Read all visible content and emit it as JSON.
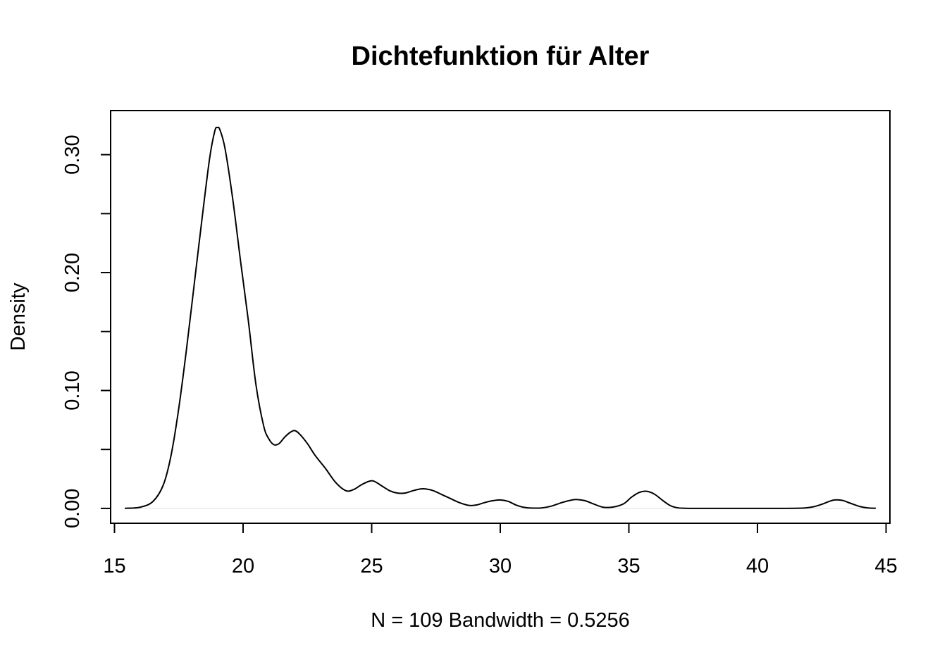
{
  "chart_data": {
    "type": "line",
    "title": "Dichtefunktion für Alter",
    "xlabel": "N = 109   Bandwidth = 0.5256",
    "ylabel": "Density",
    "xlim": [
      14.85,
      45.15
    ],
    "ylim": [
      -0.0126,
      0.3374
    ],
    "x_ticks": [
      15,
      20,
      25,
      30,
      35,
      40,
      45
    ],
    "x_tick_labels": [
      "15",
      "20",
      "25",
      "30",
      "35",
      "40",
      "45"
    ],
    "y_ticks": [
      0.0,
      0.05,
      0.1,
      0.15,
      0.2,
      0.25,
      0.3
    ],
    "y_tick_labels": [
      "0.00",
      "",
      "0.10",
      "",
      "0.20",
      "",
      "0.30"
    ],
    "grid": false,
    "baseline": 0,
    "series": [
      {
        "x": [
          15.4,
          16.0,
          16.5,
          16.9,
          17.2,
          17.5,
          17.8,
          18.1,
          18.4,
          18.7,
          18.9,
          19.0,
          19.1,
          19.3,
          19.6,
          19.9,
          20.2,
          20.5,
          20.8,
          21.0,
          21.2,
          21.4,
          21.6,
          21.8,
          22.0,
          22.2,
          22.5,
          22.8,
          23.2,
          23.6,
          24.0,
          24.3,
          24.6,
          24.9,
          25.1,
          25.4,
          25.7,
          26.0,
          26.3,
          26.6,
          26.9,
          27.1,
          27.4,
          27.7,
          28.0,
          28.4,
          28.8,
          29.1,
          29.4,
          29.7,
          30.0,
          30.3,
          30.6,
          30.9,
          31.2,
          31.6,
          32.0,
          32.4,
          32.8,
          33.0,
          33.3,
          33.6,
          34.0,
          34.4,
          34.8,
          35.1,
          35.4,
          35.7,
          36.0,
          36.3,
          36.6,
          36.9,
          37.2,
          37.6,
          38.0,
          39.0,
          40.0,
          41.0,
          41.8,
          42.2,
          42.5,
          42.8,
          43.0,
          43.3,
          43.6,
          44.0,
          44.3,
          44.6
        ],
        "y": [
          0.0001,
          0.001,
          0.006,
          0.02,
          0.045,
          0.085,
          0.135,
          0.19,
          0.245,
          0.297,
          0.32,
          0.323,
          0.321,
          0.305,
          0.262,
          0.21,
          0.16,
          0.105,
          0.07,
          0.059,
          0.054,
          0.055,
          0.06,
          0.064,
          0.066,
          0.063,
          0.055,
          0.045,
          0.034,
          0.022,
          0.015,
          0.016,
          0.02,
          0.023,
          0.023,
          0.019,
          0.015,
          0.013,
          0.013,
          0.015,
          0.0165,
          0.0165,
          0.015,
          0.012,
          0.009,
          0.005,
          0.0025,
          0.003,
          0.005,
          0.0065,
          0.0072,
          0.006,
          0.003,
          0.001,
          0.0003,
          0.0004,
          0.002,
          0.005,
          0.0072,
          0.0075,
          0.0065,
          0.004,
          0.001,
          0.0012,
          0.004,
          0.0095,
          0.0135,
          0.0145,
          0.012,
          0.007,
          0.0025,
          0.0005,
          0.0001,
          0.0,
          0.0,
          0.0,
          0.0,
          0.0,
          0.0003,
          0.0015,
          0.0035,
          0.006,
          0.0072,
          0.0068,
          0.0045,
          0.0015,
          0.0004,
          0.0001
        ]
      }
    ]
  }
}
